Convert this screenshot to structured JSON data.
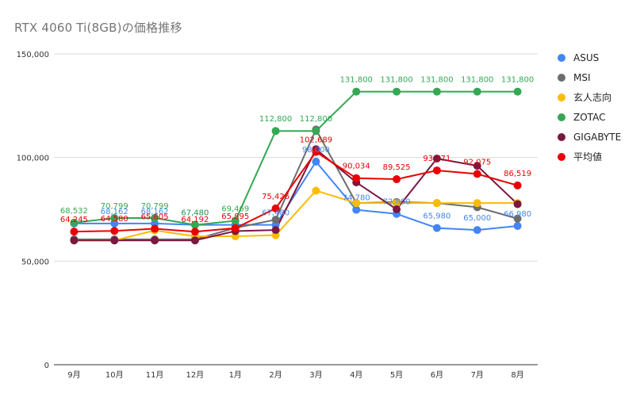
{
  "chart_data": {
    "type": "line",
    "title": "RTX 4060 Ti(8GB)の価格推移",
    "categories": [
      "9月",
      "10月",
      "11月",
      "12月",
      "1月",
      "2月",
      "3月",
      "4月",
      "5月",
      "6月",
      "7月",
      "8月"
    ],
    "ylim": [
      0,
      150000
    ],
    "yticks": [
      0,
      50000,
      100000,
      150000
    ],
    "ytick_labels": [
      "0",
      "50,000",
      "100,000",
      "150,000"
    ],
    "grid": true,
    "legend_position": "right",
    "series": [
      {
        "name": "ASUS",
        "color": "#4285f4",
        "values": [
          68162,
          68162,
          68162,
          67480,
          67480,
          67480,
          98000,
          74780,
          72800,
          65980,
          65000,
          66980
        ],
        "labels": [
          "",
          "68,162",
          "68,162",
          "67,480",
          "",
          "67,480",
          "98,000",
          "74,780",
          "72,800",
          "65,980",
          "65,000",
          "66,980"
        ]
      },
      {
        "name": "MSI",
        "color": "#6d6d6d",
        "values": [
          60500,
          60500,
          60500,
          60500,
          66000,
          70000,
          113500,
          78000,
          78500,
          78000,
          76000,
          70500
        ],
        "labels": [
          "",
          "",
          "",
          "",
          "",
          "",
          "",
          "",
          "",
          "",
          "",
          ""
        ]
      },
      {
        "name": "玄人志向",
        "color": "#fbbc04",
        "values": [
          60000,
          60000,
          64800,
          62000,
          62000,
          62500,
          84000,
          78000,
          78000,
          78000,
          78000,
          78000
        ],
        "labels": [
          "",
          "",
          "",
          "",
          "",
          "",
          "",
          "",
          "",
          "",
          "",
          ""
        ]
      },
      {
        "name": "ZOTAC",
        "color": "#34a853",
        "values": [
          68532,
          70799,
          70799,
          67480,
          69469,
          112800,
          112800,
          131800,
          131800,
          131800,
          131800,
          131800
        ],
        "labels": [
          "68,532",
          "70,799",
          "70,799",
          "67,480",
          "69,469",
          "112,800",
          "112,800",
          "131,800",
          "131,800",
          "131,800",
          "131,800",
          "131,800"
        ]
      },
      {
        "name": "GIGABYTE",
        "color": "#7b1840",
        "values": [
          60000,
          60000,
          60000,
          60000,
          64500,
          65000,
          104000,
          88000,
          75000,
          99500,
          96000,
          77500
        ],
        "labels": [
          "",
          "",
          "",
          "",
          "",
          "",
          "",
          "",
          "",
          "",
          "",
          ""
        ]
      },
      {
        "name": "平均値",
        "color": "#ea0000",
        "values": [
          64245,
          64580,
          65605,
          64192,
          65895,
          75426,
          102689,
          90034,
          89525,
          93771,
          92075,
          86519
        ],
        "labels": [
          "64,245",
          "64,580",
          "65,605",
          "64,192",
          "65,895",
          "75,426",
          "102,689",
          "90,034",
          "89,525",
          "93,771",
          "92,075",
          "86,519"
        ]
      }
    ]
  }
}
